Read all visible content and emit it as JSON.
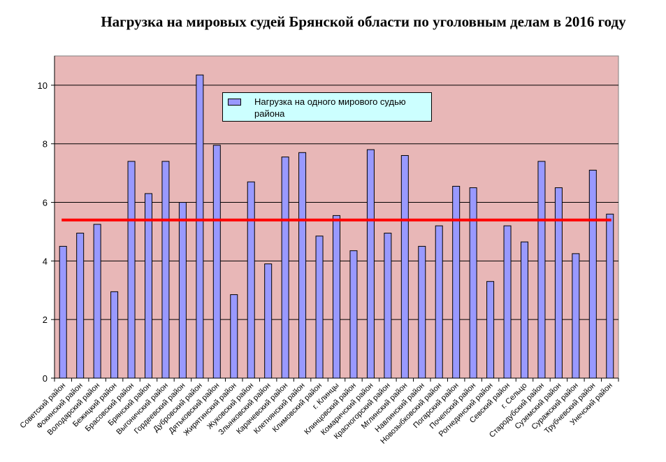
{
  "chart_data": {
    "type": "bar",
    "title": "Нагрузка на мировых судей Брянской области по уголовным делам в 2016 году",
    "categories": [
      "Советский район",
      "Фокинский район",
      "Володарский район",
      "Бежицкий район",
      "Брасовский район",
      "Брянский район",
      "Выгоничский район",
      "Гордеевский район",
      "Дубровский район",
      "Дятьковский район",
      "Жирятинский район",
      "Жуковский район",
      "Злынковский район",
      "Карачевский район",
      "Клетнянский район",
      "Климовский район",
      "г. Клинцы",
      "Клинцовский район",
      "Комаричский район",
      "Красногорский район",
      "Мглинский район",
      "Навлинский район",
      "Новозыбковский район",
      "Погарский район",
      "Почепский район",
      "Рогнединский район",
      "Севский район",
      "г. Сельцо",
      "Стародубский район",
      "Суземский район",
      "Суражский район",
      "Трубчевский район",
      "Унечский район"
    ],
    "series": [
      {
        "name": "Нагрузка на одного мирового судью района",
        "values": [
          4.5,
          4.95,
          5.25,
          2.95,
          7.4,
          6.3,
          7.4,
          6.0,
          10.35,
          7.95,
          2.85,
          6.7,
          3.9,
          7.55,
          7.7,
          4.85,
          5.55,
          4.35,
          7.8,
          4.95,
          7.6,
          4.5,
          5.2,
          6.55,
          6.5,
          3.3,
          5.2,
          4.65,
          7.4,
          6.5,
          4.25,
          7.1,
          5.6
        ]
      }
    ],
    "average": 5.4,
    "ylim": [
      0,
      11
    ],
    "yticks": [
      "0",
      "2",
      "4",
      "6",
      "8",
      "10"
    ],
    "xlabel": "",
    "ylabel": "",
    "grid": true,
    "legend_position": "top-center",
    "colors": {
      "plot_bg": "#e8b7b7",
      "bar": "#9999ff",
      "average_line": "#ff0000",
      "legend_bg": "#ccffff"
    }
  }
}
